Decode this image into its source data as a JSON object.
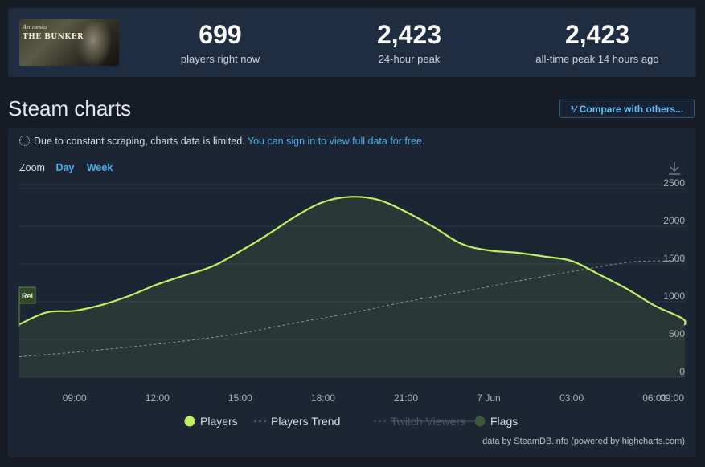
{
  "header": {
    "game_logo_line1": "Amnesia",
    "game_logo_line2": "THE BUNKER",
    "stats": [
      {
        "value": "699",
        "label": "players right now"
      },
      {
        "value": "2,423",
        "label": "24-hour peak"
      },
      {
        "value": "2,423",
        "label": "all-time peak 14 hours ago"
      }
    ]
  },
  "section_title": "Steam charts",
  "compare_button": "Compare with others...",
  "notice": {
    "text": "Due to constant scraping, charts data is limited.",
    "link": "You can sign in to view full data for free."
  },
  "zoom": {
    "label": "Zoom",
    "options": [
      "Day",
      "Week"
    ]
  },
  "credit": "data by SteamDB.info (powered by highcharts.com)",
  "chart_data": {
    "type": "area",
    "x_tick_labels": [
      "09:00",
      "12:00",
      "15:00",
      "18:00",
      "21:00",
      "7 Jun",
      "03:00",
      "06:00",
      "09:00"
    ],
    "y_ticks": [
      0,
      500,
      1000,
      1500,
      2000,
      2500
    ],
    "ylim": [
      0,
      2500
    ],
    "xlim_hours": [
      7,
      31.1
    ],
    "grid": true,
    "flag_label": "Rel",
    "flag_x_hours": 7,
    "series": [
      {
        "name": "Players",
        "color": "#bef264",
        "x_hours": [
          7,
          8,
          9,
          10,
          11,
          12,
          13,
          14,
          15,
          16,
          17,
          18,
          19,
          20,
          21,
          22,
          23,
          24,
          25,
          26,
          27,
          28,
          29,
          30,
          31,
          31.1
        ],
        "values": [
          700,
          860,
          880,
          960,
          1080,
          1230,
          1350,
          1470,
          1670,
          1890,
          2130,
          2320,
          2390,
          2350,
          2190,
          1990,
          1770,
          1680,
          1650,
          1600,
          1540,
          1360,
          1170,
          950,
          780,
          690
        ]
      },
      {
        "name": "Players Trend",
        "color": "#8a94a3",
        "x_hours": [
          7,
          9,
          11,
          13,
          15,
          17,
          19,
          21,
          23,
          25,
          27,
          29,
          30,
          31.1
        ],
        "values": [
          270,
          330,
          400,
          480,
          580,
          720,
          850,
          1000,
          1130,
          1270,
          1400,
          1520,
          1540,
          1540
        ]
      }
    ],
    "legend": [
      {
        "name": "Players",
        "marker": "circle",
        "color": "#bef264",
        "enabled": true
      },
      {
        "name": "Players Trend",
        "marker": "dash",
        "color": "#8a94a3",
        "enabled": true
      },
      {
        "name": "Twitch Viewers",
        "marker": "dash",
        "color": "#5b6675",
        "enabled": false
      },
      {
        "name": "Flags",
        "marker": "circle",
        "color": "#3f5a3a",
        "enabled": true
      }
    ]
  }
}
